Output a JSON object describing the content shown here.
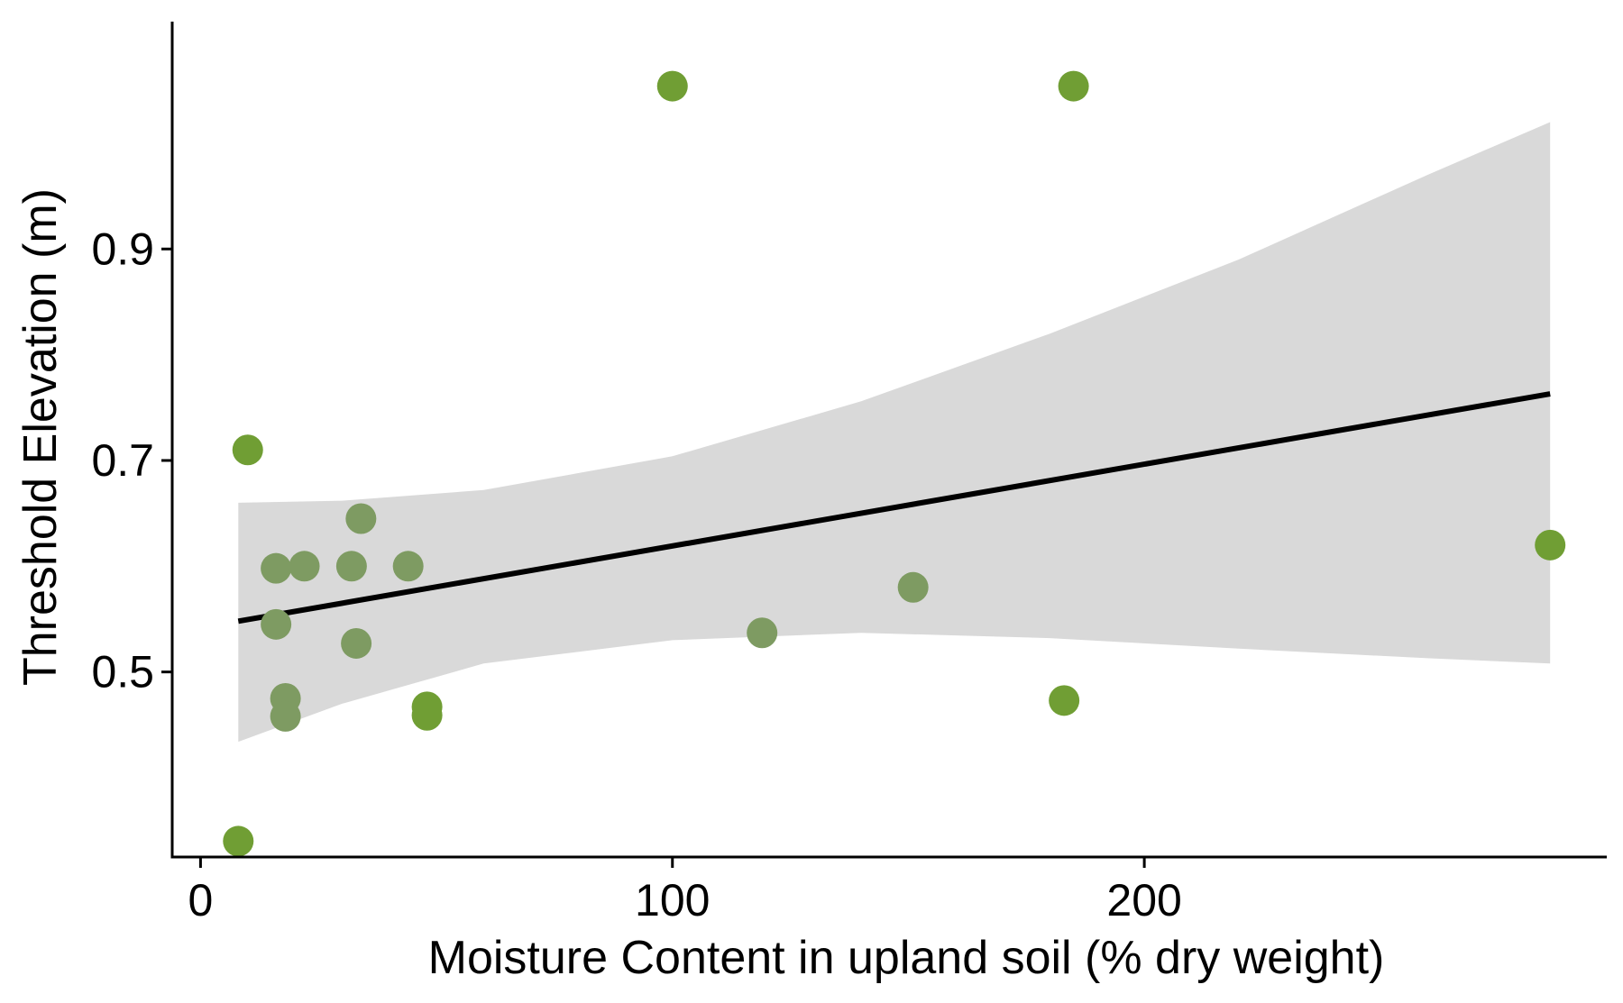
{
  "chart_data": {
    "type": "scatter",
    "title": "",
    "xlabel": "Moisture Content in upland soil (% dry weight)",
    "ylabel": "Threshold Elevation (m)",
    "xlim": [
      -6,
      298
    ],
    "ylim": [
      0.325,
      1.115
    ],
    "x_ticks": [
      0,
      100,
      200
    ],
    "x_tick_labels": [
      "0",
      "100",
      "200"
    ],
    "y_ticks": [
      0.5,
      0.7,
      0.9
    ],
    "y_tick_labels": [
      "0.5",
      "0.7",
      "0.9"
    ],
    "grid": false,
    "legend": "none",
    "point_colors": {
      "light": "#7E9B62",
      "dark": "#709E34"
    },
    "points": [
      {
        "x": 8,
        "y": 0.34,
        "tone": "dark"
      },
      {
        "x": 10,
        "y": 0.71,
        "tone": "dark"
      },
      {
        "x": 16,
        "y": 0.598,
        "tone": "light"
      },
      {
        "x": 16,
        "y": 0.545,
        "tone": "light"
      },
      {
        "x": 18,
        "y": 0.475,
        "tone": "light"
      },
      {
        "x": 18,
        "y": 0.458,
        "tone": "light"
      },
      {
        "x": 22,
        "y": 0.6,
        "tone": "light"
      },
      {
        "x": 32,
        "y": 0.6,
        "tone": "light"
      },
      {
        "x": 33,
        "y": 0.527,
        "tone": "light"
      },
      {
        "x": 34,
        "y": 0.645,
        "tone": "light"
      },
      {
        "x": 44,
        "y": 0.6,
        "tone": "light"
      },
      {
        "x": 48,
        "y": 0.467,
        "tone": "dark"
      },
      {
        "x": 48,
        "y": 0.459,
        "tone": "dark"
      },
      {
        "x": 100,
        "y": 1.054,
        "tone": "dark"
      },
      {
        "x": 119,
        "y": 0.537,
        "tone": "light"
      },
      {
        "x": 151,
        "y": 0.58,
        "tone": "light"
      },
      {
        "x": 183,
        "y": 0.473,
        "tone": "dark"
      },
      {
        "x": 185,
        "y": 1.054,
        "tone": "dark"
      },
      {
        "x": 286,
        "y": 0.62,
        "tone": "dark"
      }
    ],
    "fit_line": {
      "x": [
        8,
        286
      ],
      "y": [
        0.548,
        0.763
      ]
    },
    "confidence_band": {
      "x": [
        8,
        30,
        60,
        100,
        140,
        180,
        220,
        260,
        286
      ],
      "lower": [
        0.434,
        0.47,
        0.508,
        0.53,
        0.537,
        0.532,
        0.522,
        0.513,
        0.508
      ],
      "upper": [
        0.66,
        0.662,
        0.672,
        0.704,
        0.756,
        0.82,
        0.89,
        0.97,
        1.02
      ]
    },
    "band_color": "#D9D9D9",
    "line_color": "#000000"
  }
}
